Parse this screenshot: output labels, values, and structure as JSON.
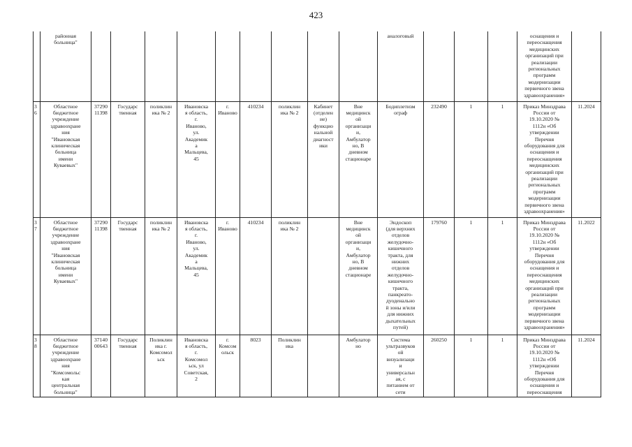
{
  "page_number": "423",
  "rows": [
    {
      "num": "",
      "org": "районная\nбольница\"",
      "code": "",
      "ownership": "",
      "unit": "",
      "address": "",
      "city": "",
      "oktmo": "",
      "subunit": "",
      "cabinet": "",
      "conditions": "",
      "equipment": "аналоговый",
      "price": "",
      "qty1": "",
      "qty2": "",
      "order": "оснащения и\nпереоснащения\nмедицинских\nорганизаций при\nреализации\nрегиональных\nпрограмм\nмодернизации\nпервичного звена\nздравоохранения»",
      "date": ""
    },
    {
      "num": "3\n6",
      "org": "Областное\nбюджетное\nучреждение\nздравоохране\nния\n\"Ивановская\nклиническая\nбольница\nимени\nКуваевых\"",
      "code": "37290\n11398",
      "ownership": "Государс\nтвенная",
      "unit": "поликлин\nика № 2",
      "address": "Ивановска\nя область,\nг.\nИваново,\nул.\nАкадемик\nа\nМальцева,\n45",
      "city": "г.\nИваново",
      "oktmo": "410234",
      "subunit": "поликлин\nика № 2",
      "cabinet": "Кабинет\n(отделен\nие)\nфункцио\nнальной\nдиагност\nики",
      "conditions": "Вне\nмедицинск\nой\nорганизаци\nи,\nАмбулатор\nно, В\nдневном\nстационаре",
      "equipment": "Бодиплетизм\nограф",
      "price": "232490",
      "qty1": "1",
      "qty2": "1",
      "order": "Приказ Минздрава\nРоссии от\n19.10.2020 №\n1112н «Об\nутверждении\nПеречня\nоборудования для\nоснащения и\nпереоснащения\nмедицинских\nорганизаций при\nреализации\nрегиональных\nпрограмм\nмодернизации\nпервичного звена\nздравоохранения»",
      "date": "11.2024"
    },
    {
      "num": "3\n7",
      "org": "Областное\nбюджетное\nучреждение\nздравоохране\nния\n\"Ивановская\nклиническая\nбольница\nимени\nКуваевых\"",
      "code": "37290\n11398",
      "ownership": "Государс\nтвенная",
      "unit": "поликлин\nика № 2",
      "address": "Ивановска\nя область,\nг.\nИваново,\nул.\nАкадемик\nа\nМальцева,\n45",
      "city": "г.\nИваново",
      "oktmo": "410234",
      "subunit": "поликлин\nика № 2",
      "cabinet": "",
      "conditions": "Вне\nмедицинск\nой\nорганизаци\nи,\nАмбулатор\nно, В\nдневном\nстационаре",
      "equipment": "Эндоскоп\n(для верхних\nотделов\nжелудочно-\nкишечного\nтракта, для\nнижних\nотделов\nжелудочно-\nкишечного\nтракта,\nпанкреато-\nдуоденально\nй зоны и/или\nдля нижних\nдыхательных\nпутей)",
      "price": "179760",
      "qty1": "1",
      "qty2": "1",
      "order": "Приказ Минздрава\nРоссии от\n19.10.2020 №\n1112н «Об\nутверждении\nПеречня\nоборудования для\nоснащения и\nпереоснащения\nмедицинских\nорганизаций при\nреализации\nрегиональных\nпрограмм\nмодернизации\nпервичного звена\nздравоохранения»",
      "date": "11.2022"
    },
    {
      "num": "3\n8",
      "org": "Областное\nбюджетное\nучреждение\nздравоохране\nния\n\"Комсомольс\nкая\nцентральная\nбольница\"",
      "code": "37140\n00643",
      "ownership": "Государс\nтвенная",
      "unit": "Поликлин\nика г.\nКомсомол\nьск",
      "address": "Ивановска\nя область,\nг.\nКомсомол\nьск, ул\nСоветская,\n2",
      "city": "г.\nКомсом\nольск",
      "oktmo": "8023",
      "subunit": "Поликлин\nика",
      "cabinet": "",
      "conditions": "Амбулатор\nно",
      "equipment": "Система\nультразвуков\nой\nвизуализаци\nи\nуниверсальн\nая, с\nпитанием от\nсети",
      "price": "260250",
      "qty1": "1",
      "qty2": "1",
      "order": "Приказ Минздрава\nРоссии от\n19.10.2020 №\n1112н «Об\nутверждении\nПеречня\nоборудования для\nоснащения и\nпереоснащения",
      "date": "11.2024"
    }
  ]
}
